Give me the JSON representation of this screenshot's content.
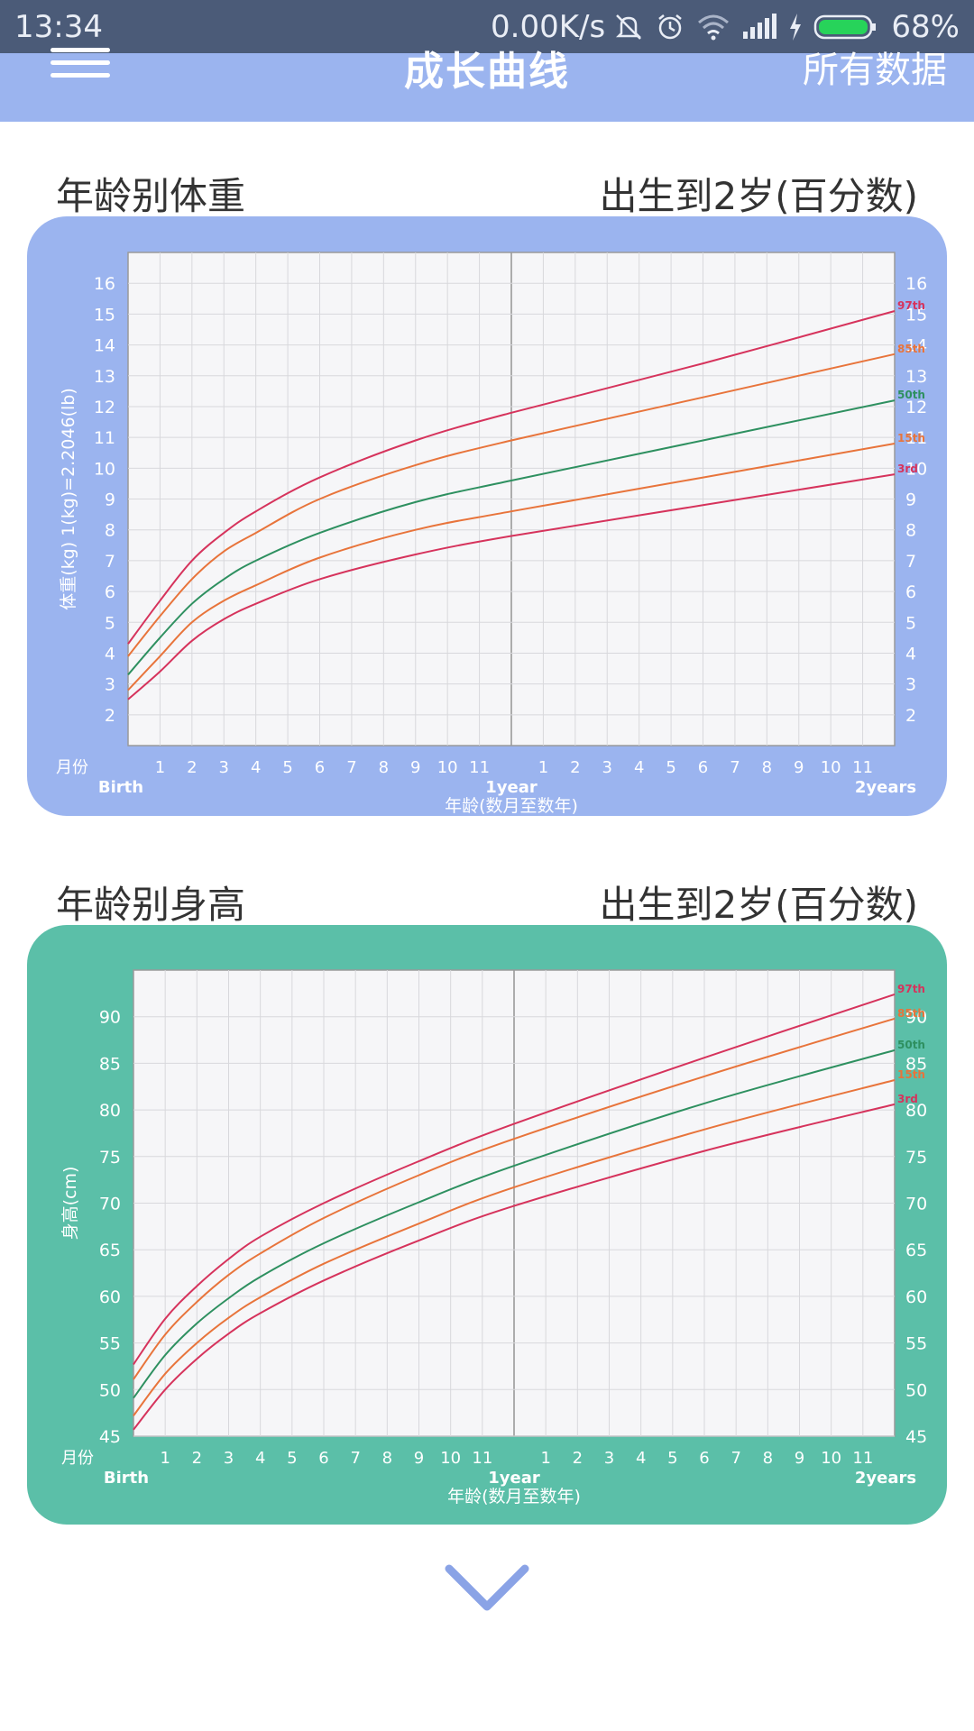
{
  "status_bar": {
    "time": "13:34",
    "net_speed": "0.00K/s",
    "icons": [
      "bell-muted-icon",
      "alarm-icon",
      "wifi-icon",
      "signal-icon",
      "charging-icon",
      "battery-icon"
    ],
    "battery": "68%"
  },
  "header": {
    "title": "成长曲线",
    "right_link": "所有数据",
    "menu_icon": "hamburger-menu-icon",
    "color": "#9bb4ef"
  },
  "weight_section": {
    "title": "年龄别体重",
    "range_label": "出生到2岁(百分数)",
    "card_color": "#9bb4ef"
  },
  "height_section": {
    "title": "年龄别身高",
    "range_label": "出生到2岁(百分数)",
    "card_color": "#5bbfa8"
  },
  "scroll_icon": "chevron-down-icon",
  "chart_data": [
    {
      "type": "line",
      "ylabel": "体重(kg) 1(kg)=2.2046(lb)",
      "xlabel": "年龄(数月至数年)",
      "month_label": "月份",
      "start_label": "Birth",
      "mid_label": "1year",
      "end_label": "2years",
      "x_tick_labels": [
        "1",
        "2",
        "3",
        "4",
        "5",
        "6",
        "7",
        "8",
        "9",
        "10",
        "11",
        "1",
        "2",
        "3",
        "4",
        "5",
        "6",
        "7",
        "8",
        "9",
        "10",
        "11"
      ],
      "x": [
        0,
        1,
        2,
        3,
        4,
        6,
        9,
        12,
        18,
        24
      ],
      "ylim": [
        1,
        17
      ],
      "y_ticks": [
        2,
        3,
        4,
        5,
        6,
        7,
        8,
        9,
        10,
        11,
        12,
        13,
        14,
        15,
        16
      ],
      "grid": true,
      "series": [
        {
          "name": "97th",
          "color": "#d6335c",
          "values": [
            4.3,
            5.7,
            7.0,
            7.9,
            8.6,
            9.7,
            10.9,
            11.8,
            13.4,
            15.1
          ]
        },
        {
          "name": "85th",
          "color": "#e8743b",
          "values": [
            3.9,
            5.2,
            6.4,
            7.3,
            7.9,
            9.0,
            10.1,
            10.9,
            12.3,
            13.7
          ]
        },
        {
          "name": "50th",
          "color": "#2e9060",
          "values": [
            3.3,
            4.5,
            5.6,
            6.4,
            7.0,
            7.9,
            8.9,
            9.6,
            10.9,
            12.2
          ]
        },
        {
          "name": "15th",
          "color": "#e8743b",
          "values": [
            2.8,
            3.9,
            5.0,
            5.7,
            6.2,
            7.1,
            8.0,
            8.6,
            9.7,
            10.8
          ]
        },
        {
          "name": "3rd",
          "color": "#d6335c",
          "values": [
            2.5,
            3.4,
            4.4,
            5.1,
            5.6,
            6.4,
            7.2,
            7.8,
            8.8,
            9.8
          ]
        }
      ]
    },
    {
      "type": "line",
      "ylabel": "身高(cm)",
      "xlabel": "年龄(数月至数年)",
      "month_label": "月份",
      "start_label": "Birth",
      "mid_label": "1year",
      "end_label": "2years",
      "x_tick_labels": [
        "1",
        "2",
        "3",
        "4",
        "5",
        "6",
        "7",
        "8",
        "9",
        "10",
        "11",
        "1",
        "2",
        "3",
        "4",
        "5",
        "6",
        "7",
        "8",
        "9",
        "10",
        "11"
      ],
      "x": [
        0,
        1,
        2,
        3,
        4,
        6,
        9,
        12,
        18,
        24
      ],
      "ylim": [
        45,
        95
      ],
      "y_ticks": [
        45,
        50,
        55,
        60,
        65,
        70,
        75,
        80,
        85,
        90
      ],
      "grid": true,
      "series": [
        {
          "name": "97th",
          "color": "#d6335c",
          "values": [
            52.7,
            57.6,
            61.1,
            64.0,
            66.4,
            70.0,
            74.5,
            78.5,
            85.6,
            92.4
          ]
        },
        {
          "name": "85th",
          "color": "#e8743b",
          "values": [
            51.1,
            55.9,
            59.4,
            62.3,
            64.6,
            68.4,
            73.0,
            76.9,
            83.6,
            89.8
          ]
        },
        {
          "name": "50th",
          "color": "#2e9060",
          "values": [
            49.1,
            53.7,
            57.1,
            59.8,
            62.1,
            65.7,
            70.1,
            74.0,
            80.7,
            86.4
          ]
        },
        {
          "name": "15th",
          "color": "#e8743b",
          "values": [
            47.2,
            51.7,
            55.0,
            57.7,
            59.9,
            63.5,
            67.8,
            71.7,
            77.9,
            83.2
          ]
        },
        {
          "name": "3rd",
          "color": "#d6335c",
          "values": [
            45.7,
            50.0,
            53.3,
            56.0,
            58.2,
            61.7,
            66.0,
            69.7,
            75.6,
            80.6
          ]
        }
      ]
    }
  ]
}
